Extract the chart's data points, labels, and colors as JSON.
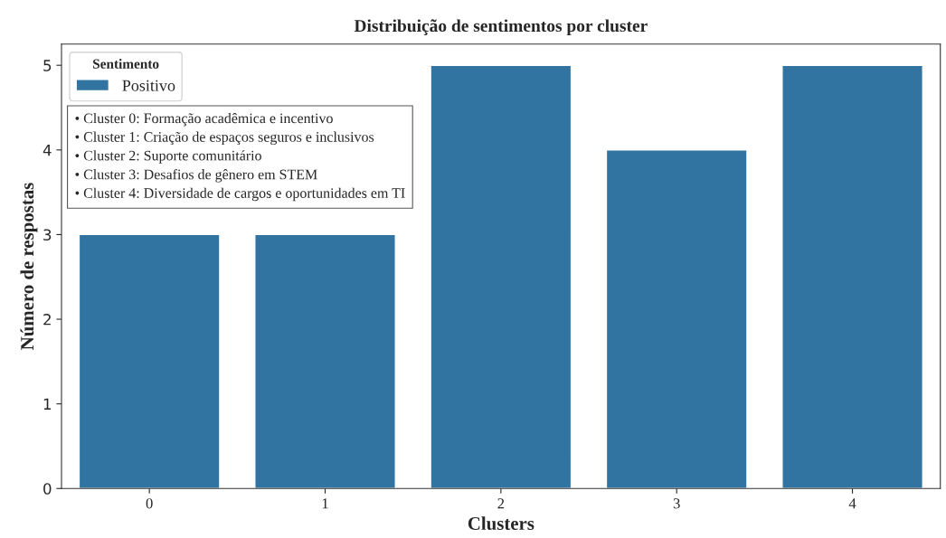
{
  "chart_data": {
    "type": "bar",
    "title": "Distribuição de sentimentos por cluster",
    "xlabel": "Clusters",
    "ylabel": "Número de respostas",
    "legend_title": "Sentimento",
    "categories": [
      "0",
      "1",
      "2",
      "3",
      "4"
    ],
    "series": [
      {
        "name": "Positivo",
        "color": "#3274a1",
        "values": [
          3,
          3,
          5,
          4,
          5
        ]
      }
    ],
    "ylim": [
      0,
      5.25
    ],
    "yticks": [
      0,
      1,
      2,
      3,
      4,
      5
    ],
    "grid": false,
    "legend": "top left",
    "annotations": [
      "• Cluster 0: Formação acadêmica e incentivo\n• Cluster 1: Criação de espaços seguros e inclusivos\n• Cluster 2: Suporte comunitário\n• Cluster 3: Desafios de gênero em STEM\n• Cluster 4: Diversidade de cargos e oportunidades em TI"
    ]
  }
}
